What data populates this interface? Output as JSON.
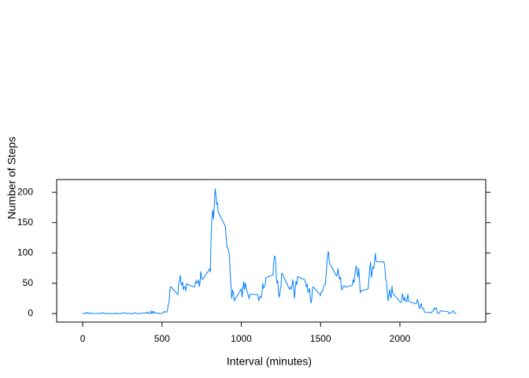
{
  "chart_data": {
    "type": "line",
    "xlabel": "Interval (minutes)",
    "ylabel": "Number of Steps",
    "x": [
      0,
      5,
      10,
      15,
      20,
      25,
      30,
      35,
      40,
      45,
      50,
      55,
      100,
      105,
      110,
      115,
      120,
      125,
      130,
      135,
      140,
      145,
      150,
      155,
      200,
      205,
      210,
      215,
      220,
      225,
      230,
      235,
      240,
      245,
      250,
      255,
      300,
      305,
      310,
      315,
      320,
      325,
      330,
      335,
      340,
      345,
      350,
      355,
      400,
      405,
      410,
      415,
      420,
      425,
      430,
      435,
      440,
      445,
      450,
      455,
      500,
      505,
      510,
      515,
      520,
      525,
      530,
      535,
      540,
      545,
      550,
      555,
      600,
      605,
      610,
      615,
      620,
      625,
      630,
      635,
      640,
      645,
      650,
      655,
      700,
      705,
      710,
      715,
      720,
      725,
      730,
      735,
      740,
      745,
      750,
      755,
      800,
      805,
      810,
      815,
      820,
      825,
      830,
      835,
      840,
      845,
      850,
      855,
      900,
      905,
      910,
      915,
      920,
      925,
      930,
      935,
      940,
      945,
      950,
      955,
      1000,
      1005,
      1010,
      1015,
      1020,
      1025,
      1030,
      1035,
      1040,
      1045,
      1050,
      1055,
      1100,
      1105,
      1110,
      1115,
      1120,
      1125,
      1130,
      1135,
      1140,
      1145,
      1150,
      1155,
      1200,
      1205,
      1210,
      1215,
      1220,
      1225,
      1230,
      1235,
      1240,
      1245,
      1250,
      1255,
      1300,
      1305,
      1310,
      1315,
      1320,
      1325,
      1330,
      1335,
      1340,
      1345,
      1350,
      1355,
      1400,
      1405,
      1410,
      1415,
      1420,
      1425,
      1430,
      1435,
      1440,
      1445,
      1450,
      1455,
      1500,
      1505,
      1510,
      1515,
      1520,
      1525,
      1530,
      1535,
      1540,
      1545,
      1550,
      1555,
      1600,
      1605,
      1610,
      1615,
      1620,
      1625,
      1630,
      1635,
      1640,
      1645,
      1650,
      1655,
      1700,
      1705,
      1710,
      1715,
      1720,
      1725,
      1730,
      1735,
      1740,
      1745,
      1750,
      1755,
      1800,
      1805,
      1810,
      1815,
      1820,
      1825,
      1830,
      1835,
      1840,
      1845,
      1850,
      1855,
      1900,
      1905,
      1910,
      1915,
      1920,
      1925,
      1930,
      1935,
      1940,
      1945,
      1950,
      1955,
      2000,
      2005,
      2010,
      2015,
      2020,
      2025,
      2030,
      2035,
      2040,
      2045,
      2050,
      2055,
      2100,
      2105,
      2110,
      2115,
      2120,
      2125,
      2130,
      2135,
      2140,
      2145,
      2150,
      2155,
      2200,
      2205,
      2210,
      2215,
      2220,
      2225,
      2230,
      2235,
      2240,
      2245,
      2250,
      2255,
      2300,
      2305,
      2310,
      2315,
      2320,
      2325,
      2330,
      2335,
      2340,
      2345,
      2350,
      2355
    ],
    "series": [
      {
        "name": "steps",
        "color": "#0080ff",
        "values": [
          1.7,
          0.3,
          0.1,
          0.2,
          0,
          2.1,
          0.5,
          0.9,
          0,
          1.5,
          0.3,
          0.1,
          0.3,
          0.7,
          0.2,
          0.3,
          0,
          1.1,
          1.8,
          0.2,
          0.2,
          0.4,
          0.3,
          0,
          0,
          0,
          1.1,
          0,
          0,
          0.1,
          0,
          0.2,
          0,
          0,
          1.5,
          0.9,
          0,
          0,
          0,
          0,
          0.2,
          0.6,
          1.6,
          0.6,
          0.5,
          0.1,
          0,
          0,
          1.2,
          0.9,
          2.6,
          0,
          0.3,
          0.4,
          4.1,
          0.7,
          3.5,
          0.8,
          3.1,
          1.1,
          0,
          1.6,
          3,
          2.2,
          3.3,
          3,
          2.1,
          6.1,
          16,
          18.3,
          39.5,
          44.5,
          31.5,
          49.3,
          53.8,
          63.5,
          50,
          47.1,
          52.2,
          39.3,
          44,
          44.2,
          37.4,
          49,
          43.8,
          44.4,
          50.5,
          54.5,
          49.9,
          51,
          55.7,
          44.3,
          52.3,
          69.5,
          57.8,
          56.2,
          73.4,
          68.2,
          129.4,
          157.5,
          171.2,
          155.4,
          177.3,
          206.2,
          195.9,
          179.6,
          183.4,
          167,
          143.5,
          124,
          109.1,
          108.1,
          103.7,
          96,
          66.2,
          45.2,
          24.8,
          38.8,
          35,
          21.1,
          40.6,
          27,
          42.4,
          52.7,
          38.9,
          50.8,
          44.3,
          37.4,
          34.7,
          28.3,
          25.1,
          31.9,
          31.4,
          29.7,
          21.3,
          25.5,
          28.4,
          26.5,
          33.4,
          50,
          42,
          44.6,
          46,
          59.2,
          63.9,
          87.7,
          94.8,
          92.8,
          63.4,
          50.2,
          54.5,
          32.4,
          26.5,
          37.7,
          45.1,
          67.3,
          42.3,
          39.9,
          43.3,
          41,
          46.2,
          56.4,
          42.8,
          25.1,
          40,
          53.5,
          47.3,
          60.8,
          55.8,
          52,
          43.6,
          48.7,
          35.5,
          37.5,
          41.8,
          27.5,
          17.1,
          26.1,
          43.6,
          43.8,
          30,
          36.1,
          35.5,
          38.8,
          46,
          47.8,
          48.1,
          65.3,
          82.9,
          98.7,
          102.1,
          84,
          62.1,
          64.1,
          74.5,
          63.2,
          56.9,
          59.8,
          43.9,
          38.6,
          44.7,
          45.5,
          46.2,
          43.7,
          46.6,
          56.3,
          50.7,
          61.2,
          72.7,
          78.9,
          68.9,
          59.7,
          75.1,
          56.5,
          34.8,
          37.5,
          40.7,
          58,
          74.7,
          85.3,
          59.3,
          67.8,
          77.7,
          74.2,
          85.3,
          99.5,
          86.6,
          85.6,
          84.9,
          77.8,
          58,
          53.4,
          36.3,
          20.7,
          27.4,
          40,
          30.2,
          25.5,
          45.7,
          33.5,
          19.6,
          19,
          19.3,
          33.3,
          26.8,
          21.2,
          27.3,
          21.3,
          19.5,
          21.3,
          32.3,
          20.2,
          15.9,
          17.2,
          23.5,
          19.2,
          12.5,
          8,
          14.7,
          16.3,
          8.7,
          7.8,
          8.1,
          2.6,
          1.5,
          3.7,
          4.8,
          8.5,
          7.1,
          8.7,
          9.8,
          2.2,
          0.3,
          0.1,
          1.6,
          4.6,
          3.3,
          2.8,
          0,
          0.8,
          1,
          1.6,
          2.6,
          4.7,
          3.3,
          0.6,
          0.2,
          1.1
        ]
      }
    ],
    "xlim": [
      -164,
      2541
    ],
    "ylim": [
      -14,
      221
    ],
    "xticks": [
      0,
      500,
      1000,
      1500,
      2000
    ],
    "yticks": [
      0,
      50,
      100,
      150,
      200
    ]
  }
}
